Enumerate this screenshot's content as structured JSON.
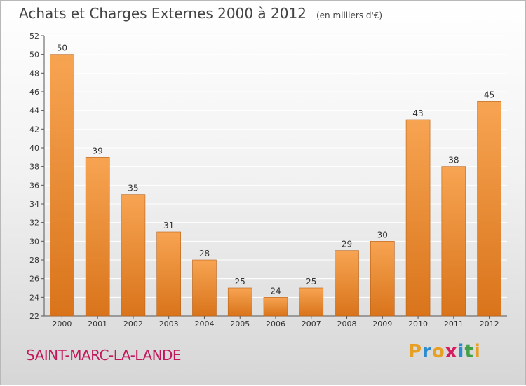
{
  "title": "Achats et Charges Externes 2000 à 2012",
  "unit_note": "(en milliers d'€)",
  "commune": "SAINT-MARC-LA-LANDE",
  "logo": {
    "text": "Proxiti",
    "colors": [
      "#e8a024",
      "#2d8bd0",
      "#e8a024",
      "#d81b60",
      "#2d8bd0",
      "#43a047",
      "#e8a024"
    ]
  },
  "colors": {
    "bar_top": "#f7a452",
    "bar_bottom": "#d9741b",
    "bar_edge": "#b8621a",
    "grid": "#ffffff",
    "commune": "#c2185b"
  },
  "chart_data": {
    "type": "bar",
    "title": "Achats et Charges Externes 2000 à 2012",
    "subtitle": "(en milliers d'€)",
    "xlabel": "",
    "ylabel": "",
    "categories": [
      "2000",
      "2001",
      "2002",
      "2003",
      "2004",
      "2005",
      "2006",
      "2007",
      "2008",
      "2009",
      "2010",
      "2011",
      "2012"
    ],
    "values": [
      50,
      39,
      35,
      31,
      28,
      25,
      24,
      25,
      29,
      30,
      43,
      38,
      45
    ],
    "ylim": [
      22,
      52
    ],
    "yticks": [
      22,
      24,
      26,
      28,
      30,
      32,
      34,
      36,
      38,
      40,
      42,
      44,
      46,
      48,
      50,
      52
    ],
    "grid": true,
    "data_labels": true
  }
}
